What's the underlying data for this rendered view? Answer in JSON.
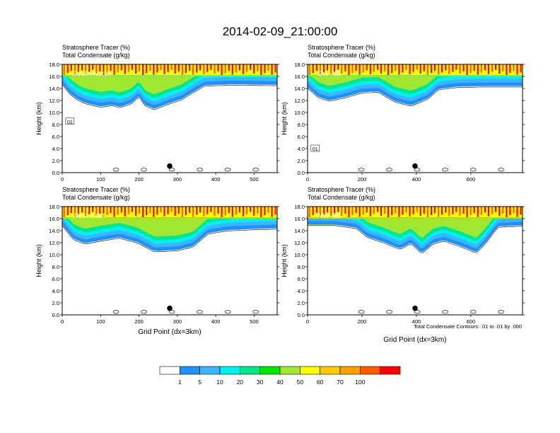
{
  "title": "2014-02-09_21:00:00",
  "colors": {
    "levels": [
      "#ffffff",
      "#1e90ff",
      "#3cb4ff",
      "#00f0f0",
      "#00e68c",
      "#00e600",
      "#a0e632",
      "#ffff00",
      "#ffc800",
      "#ffa000",
      "#ff5a00",
      "#ff0000"
    ]
  },
  "colorbar": {
    "labels": [
      "1",
      "5",
      "10",
      "20",
      "30",
      "40",
      "50",
      "60",
      "70",
      "100"
    ]
  },
  "footnote": "Total Condensate Contours: .01 to .01 by .000",
  "chart_data": [
    {
      "type": "heatmap",
      "tag": "South-North",
      "left_label": "Stratosphere Tracer   (%)",
      "right_label": "Total Condensate   (g/kg)",
      "ylabel": "Height (km)",
      "xlabel": "",
      "xlim": [
        0,
        560
      ],
      "ylim": [
        0,
        18
      ],
      "xticks": [
        "0",
        "100",
        "200",
        "300",
        "400",
        "500"
      ],
      "yticks": [
        "0.0",
        "2.0",
        "4.0",
        "6.0",
        "8.0",
        "10.0",
        "12.0",
        "14.0",
        "16.0",
        "18.0"
      ],
      "markers": [
        {
          "x": 280,
          "y": 1.1
        }
      ],
      "contour_labels": [
        {
          "text": "01",
          "x": 20,
          "y": 8.5
        }
      ],
      "cloud_base": [
        [
          0,
          14.8
        ],
        [
          20,
          13.2
        ],
        [
          40,
          12.2
        ],
        [
          60,
          11.6
        ],
        [
          100,
          11.0
        ],
        [
          130,
          11.3
        ],
        [
          150,
          10.9
        ],
        [
          180,
          11.6
        ],
        [
          200,
          12.8
        ],
        [
          215,
          11.3
        ],
        [
          240,
          10.6
        ],
        [
          280,
          11.6
        ],
        [
          310,
          12.2
        ],
        [
          340,
          13.4
        ],
        [
          370,
          14.5
        ],
        [
          400,
          14.6
        ],
        [
          450,
          14.7
        ],
        [
          560,
          14.6
        ]
      ]
    },
    {
      "type": "heatmap",
      "tag": "SW-NE",
      "left_label": "Stratosphere Tracer   (%)",
      "right_label": "Total Condensate   (g/kg)",
      "ylabel": "Height (km)",
      "xlabel": "",
      "xlim": [
        0,
        790
      ],
      "ylim": [
        0,
        18
      ],
      "xticks": [
        "0",
        "200",
        "400",
        "600"
      ],
      "yticks": [
        "0.0",
        "2.0",
        "4.0",
        "6.0",
        "8.0",
        "10.0",
        "12.0",
        "14.0",
        "16.0",
        "18.0"
      ],
      "markers": [
        {
          "x": 395,
          "y": 1.1
        }
      ],
      "contour_labels": [
        {
          "text": "01",
          "x": 28,
          "y": 4.0
        }
      ],
      "cloud_base": [
        [
          0,
          14.2
        ],
        [
          40,
          12.6
        ],
        [
          80,
          12.0
        ],
        [
          140,
          12.6
        ],
        [
          200,
          13.4
        ],
        [
          260,
          13.5
        ],
        [
          320,
          11.9
        ],
        [
          380,
          11.2
        ],
        [
          440,
          12.3
        ],
        [
          480,
          13.9
        ],
        [
          550,
          14.3
        ],
        [
          650,
          14.4
        ],
        [
          790,
          14.4
        ]
      ]
    },
    {
      "type": "heatmap",
      "tag": "West-East",
      "left_label": "Stratosphere Tracer   (%)",
      "right_label": "Total Condensate   (g/kg)",
      "ylabel": "Height (km)",
      "xlabel": "Grid Point (dx=3km)",
      "xlim": [
        0,
        560
      ],
      "ylim": [
        0,
        18
      ],
      "xticks": [
        "0",
        "100",
        "200",
        "300",
        "400",
        "500"
      ],
      "yticks": [
        "0.0",
        "2.0",
        "4.0",
        "6.0",
        "8.0",
        "10.0",
        "12.0",
        "14.0",
        "16.0",
        "18.0"
      ],
      "markers": [
        {
          "x": 280,
          "y": 1.1
        }
      ],
      "contour_labels": [],
      "cloud_base": [
        [
          0,
          15.0
        ],
        [
          30,
          12.6
        ],
        [
          60,
          11.9
        ],
        [
          100,
          12.4
        ],
        [
          150,
          12.9
        ],
        [
          200,
          12.0
        ],
        [
          240,
          10.6
        ],
        [
          300,
          10.8
        ],
        [
          340,
          11.4
        ],
        [
          380,
          13.6
        ],
        [
          430,
          14.1
        ],
        [
          500,
          14.3
        ],
        [
          560,
          14.4
        ]
      ]
    },
    {
      "type": "heatmap",
      "tag": "NW-SE",
      "left_label": "Stratosphere Tracer   (%)",
      "right_label": "Total Condensate   (g/kg)",
      "ylabel": "Height (km)",
      "xlabel": "Grid Point (dx=3km)",
      "xlim": [
        0,
        790
      ],
      "ylim": [
        0,
        18
      ],
      "xticks": [
        "0",
        "200",
        "400",
        "600"
      ],
      "yticks": [
        "0.0",
        "2.0",
        "4.0",
        "6.0",
        "8.0",
        "10.0",
        "12.0",
        "14.0",
        "16.0",
        "18.0"
      ],
      "markers": [
        {
          "x": 395,
          "y": 1.1
        }
      ],
      "contour_labels": [],
      "cloud_base": [
        [
          0,
          15.0
        ],
        [
          100,
          15.0
        ],
        [
          180,
          14.5
        ],
        [
          220,
          13.0
        ],
        [
          280,
          12.1
        ],
        [
          340,
          11.0
        ],
        [
          380,
          12.0
        ],
        [
          420,
          10.3
        ],
        [
          460,
          11.9
        ],
        [
          500,
          12.4
        ],
        [
          560,
          11.5
        ],
        [
          620,
          10.4
        ],
        [
          650,
          11.8
        ],
        [
          700,
          14.7
        ],
        [
          790,
          14.9
        ]
      ]
    }
  ]
}
